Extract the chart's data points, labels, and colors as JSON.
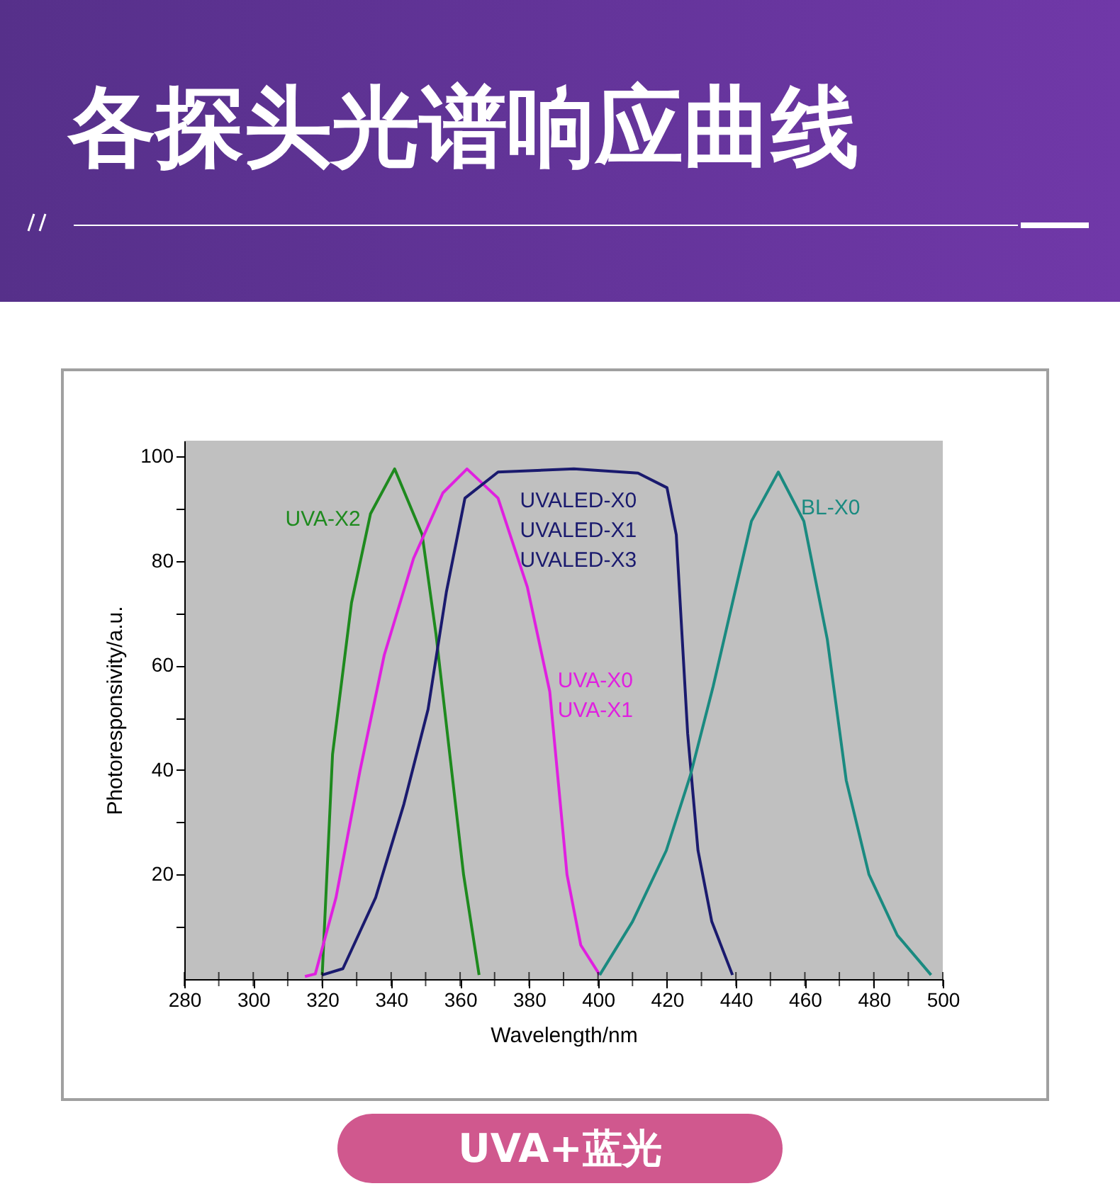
{
  "chart_data": {
    "type": "line",
    "title": "各探头光谱响应曲线",
    "subtitle": "UVA+蓝光",
    "xlabel": "Wavelength/nm",
    "ylabel": "Photoresponsivity/a.u.",
    "xlim": [
      280,
      500
    ],
    "ylim": [
      0,
      103
    ],
    "xticks": [
      280,
      {
        "value": 290,
        "label": null
      },
      300,
      {
        "value": 310,
        "label": null
      },
      320,
      {
        "value": 330,
        "label": null
      },
      340,
      {
        "value": 350,
        "label": null
      },
      360,
      {
        "value": 370,
        "label": null
      },
      380,
      {
        "value": 390,
        "label": null
      },
      400,
      {
        "value": 410,
        "label": null
      },
      420,
      {
        "value": 430,
        "label": null
      },
      440,
      {
        "value": 450,
        "label": null
      },
      460,
      {
        "value": 470,
        "label": null
      },
      480,
      {
        "value": 490,
        "label": null
      },
      500
    ],
    "yticks": [
      {
        "value": 10,
        "label": null
      },
      20,
      {
        "value": 30,
        "label": null
      },
      40,
      {
        "value": 50,
        "label": null
      },
      60,
      {
        "value": 70,
        "label": null
      },
      80,
      {
        "value": 90,
        "label": null
      },
      100
    ],
    "grid": false,
    "legend": false,
    "marker": "none",
    "line_style": "solid",
    "series": [
      {
        "name": "UVA-X2",
        "color": "#1e8a1e",
        "x": [
          320,
          323,
          328.5,
          334,
          341,
          349,
          353,
          357,
          361,
          365.5
        ],
        "values": [
          0.8,
          43,
          72,
          89,
          97.6,
          85,
          66,
          43,
          20,
          0.8
        ]
      },
      {
        "name": "UVA-X0\nUVA-X1",
        "color": "#e020e0",
        "x": [
          315,
          318,
          324,
          331,
          338,
          346.5,
          355,
          362,
          371,
          379.5,
          386,
          391,
          395,
          400.5
        ],
        "values": [
          0.5,
          1,
          15.6,
          40,
          62,
          80.5,
          93,
          97.6,
          92,
          75,
          55,
          20,
          6.5,
          0.8
        ]
      },
      {
        "name": "UVALED-X0\nUVALED-X1\nUVALED-X3",
        "color": "#1a1a6e",
        "x": [
          320,
          326,
          335.5,
          343.7,
          350.7,
          356,
          361.4,
          371,
          393,
          411.6,
          420,
          422.7,
          424,
          426,
          429,
          433,
          439
        ],
        "values": [
          0.8,
          2,
          15.6,
          33.5,
          51.6,
          74,
          92,
          97,
          97.6,
          96.8,
          94,
          85,
          70,
          47,
          24.6,
          11,
          0.8
        ]
      },
      {
        "name": "BL-X0",
        "color": "#1a8a80",
        "x": [
          400.5,
          410,
          419.8,
          426.8,
          433.4,
          439,
          444.5,
          452.3,
          459.7,
          466.5,
          472,
          478.6,
          486.8,
          496.6
        ],
        "values": [
          0.8,
          11,
          24.6,
          39,
          56,
          72,
          87.6,
          97,
          87.6,
          65,
          38,
          20,
          8.4,
          0.8
        ]
      }
    ]
  }
}
